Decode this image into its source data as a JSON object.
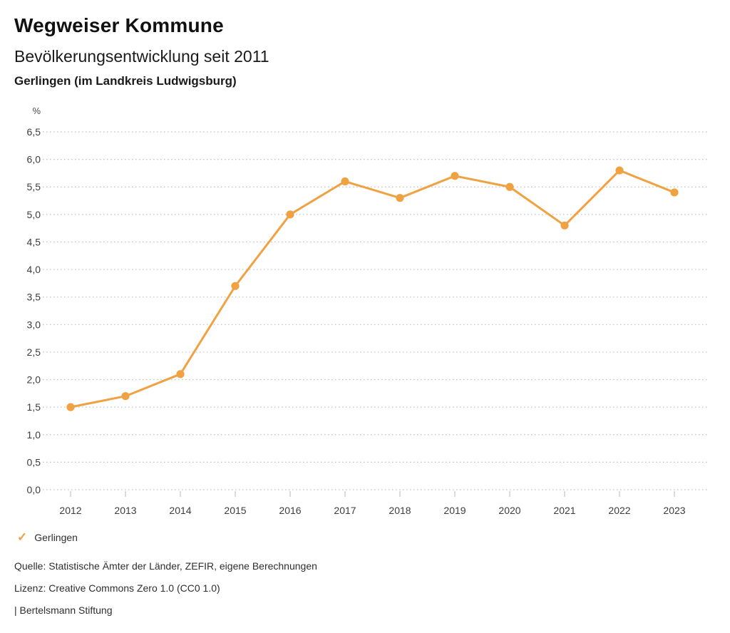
{
  "header": {
    "title": "Wegweiser Kommune",
    "subtitle": "Bevölkerungsentwicklung seit 2011",
    "region": "Gerlingen (im Landkreis Ludwigsburg)"
  },
  "legend": {
    "items": [
      {
        "label": "Gerlingen",
        "check_glyph": "✓",
        "color": "#F0A142",
        "checked": true
      }
    ]
  },
  "footer": {
    "source": "Quelle: Statistische Ämter der Länder, ZEFIR, eigene Berechnungen",
    "license": "Lizenz: Creative Commons Zero 1.0 (CC0 1.0)",
    "attribution": "| Bertelsmann Stiftung"
  },
  "chart_data": {
    "type": "line",
    "title": "Bevölkerungsentwicklung seit 2011",
    "unit": "%",
    "categories": [
      "2012",
      "2013",
      "2014",
      "2015",
      "2016",
      "2017",
      "2018",
      "2019",
      "2020",
      "2021",
      "2022",
      "2023"
    ],
    "series": [
      {
        "name": "Gerlingen",
        "color": "#F0A142",
        "values": [
          1.5,
          1.7,
          2.1,
          3.7,
          5.0,
          5.6,
          5.3,
          5.7,
          5.5,
          4.8,
          5.8,
          5.4
        ]
      }
    ],
    "ylim": [
      0.0,
      6.5
    ],
    "ytick_step": 0.5,
    "decimal_separator": ",",
    "grid": "horizontal-dotted",
    "grid_color": "#c4c4c4",
    "legend_position": "bottom-left"
  }
}
